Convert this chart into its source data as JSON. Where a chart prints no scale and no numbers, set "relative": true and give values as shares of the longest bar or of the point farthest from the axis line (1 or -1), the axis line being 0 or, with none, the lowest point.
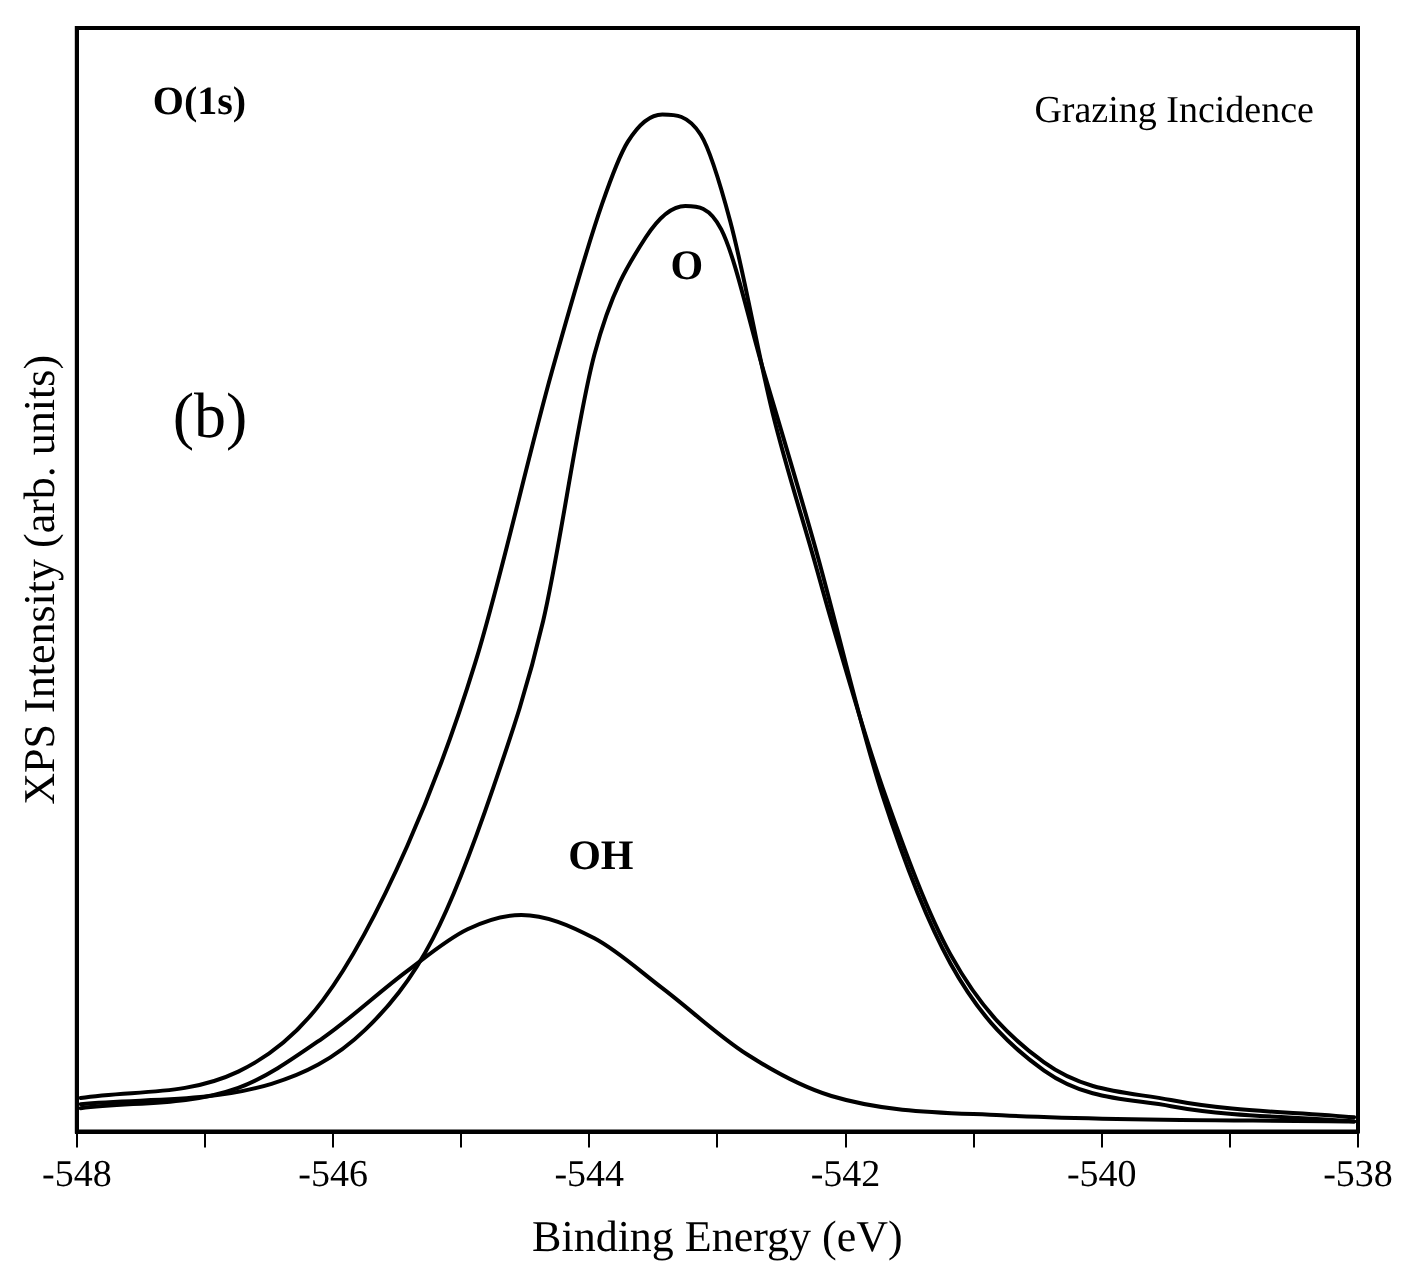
{
  "chart_data": {
    "type": "line",
    "relative": true,
    "xlabel": "Binding Energy (eV)",
    "ylabel": "XPS Intensity (arb. units)",
    "xlim": [
      -548,
      -538
    ],
    "xticks": [
      -548,
      {
        "value": -547,
        "label": null
      },
      -546,
      {
        "value": -545,
        "label": null
      },
      -544,
      {
        "value": -543,
        "label": null
      },
      -542,
      {
        "value": -541,
        "label": null
      },
      -540,
      {
        "value": -539,
        "label": null
      },
      -538
    ],
    "grid": false,
    "legend": false,
    "marker": "none",
    "line_style": "solid",
    "series": [
      {
        "color": "#000000",
        "x": [
          -547.97,
          -546.74,
          -546.08,
          -545.42,
          -544.89,
          -544.29,
          -543.9,
          -543.7,
          -543.43,
          -543.13,
          -542.9,
          -542.57,
          -542.24,
          -542.11,
          -541.71,
          -541.18,
          -540.45,
          -539.46,
          -538.03
        ],
        "values": [
          0.033,
          0.059,
          0.129,
          0.281,
          0.461,
          0.748,
          0.912,
          0.973,
          1.0,
          0.98,
          0.895,
          0.707,
          0.56,
          0.502,
          0.338,
          0.174,
          0.068,
          0.031,
          0.014
        ]
      },
      {
        "color": "#000000",
        "x": [
          -547.97,
          -546.48,
          -545.75,
          -545.22,
          -544.75,
          -544.36,
          -543.96,
          -543.56,
          -543.25,
          -542.97,
          -542.64,
          -542.24,
          -541.71,
          -541.18,
          -540.45,
          -539.46,
          -538.03
        ],
        "values": [
          0.027,
          0.047,
          0.1,
          0.19,
          0.338,
          0.502,
          0.764,
          0.879,
          0.91,
          0.887,
          0.748,
          0.576,
          0.33,
          0.165,
          0.06,
          0.025,
          0.01
        ]
      },
      {
        "color": "#000000",
        "x": [
          -547.97,
          -546.74,
          -546.08,
          -545.42,
          -544.95,
          -544.53,
          -543.96,
          -543.43,
          -542.77,
          -542.11,
          -540.78,
          -538.03
        ],
        "values": [
          0.023,
          0.043,
          0.092,
          0.158,
          0.199,
          0.213,
          0.19,
          0.141,
          0.076,
          0.035,
          0.016,
          0.01
        ]
      }
    ],
    "annotations": [
      "O(1s)",
      "Grazing Incidence",
      "(b)",
      "O",
      "OH"
    ]
  }
}
